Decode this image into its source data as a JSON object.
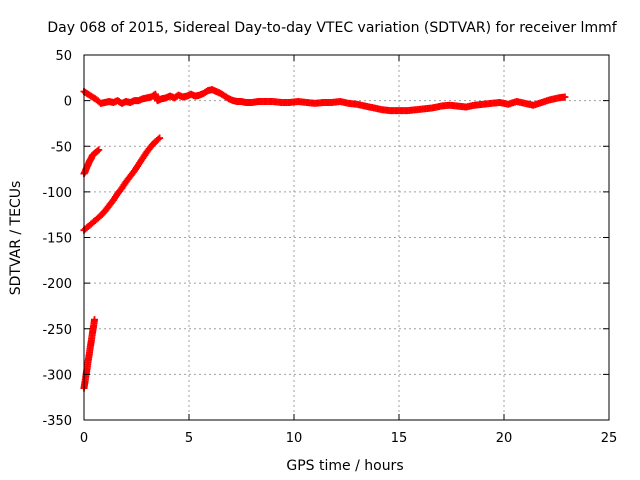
{
  "chart_data": {
    "type": "scatter",
    "title": "Day 068 of 2015, Sidereal Day-to-day VTEC variation (SDTVAR) for receiver lmmf",
    "xlabel": "GPS time / hours",
    "ylabel": "SDTVAR / TECUs",
    "xlim": [
      0,
      25
    ],
    "ylim": [
      -350,
      50
    ],
    "xticks": [
      0,
      5,
      10,
      15,
      20,
      25
    ],
    "yticks": [
      -350,
      -300,
      -250,
      -200,
      -150,
      -100,
      -50,
      0,
      50
    ],
    "xtick_labels": [
      "0",
      "5",
      "10",
      "15",
      "20",
      "25"
    ],
    "ytick_labels": [
      "-350",
      "-300",
      "-250",
      "-200",
      "-150",
      "-100",
      "-50",
      "0",
      "50"
    ],
    "grid": true,
    "legend": "none",
    "marker": "plus",
    "color": "#ff0000",
    "series": [
      {
        "x": [
          0.0,
          0.2,
          0.4,
          0.6,
          0.8,
          1.0,
          1.2,
          1.4,
          1.6,
          1.8,
          2.0,
          2.2,
          2.4,
          2.6,
          2.8,
          3.0,
          3.2,
          3.4,
          3.5,
          3.7,
          3.9,
          4.1,
          4.3,
          4.5,
          4.7,
          4.9,
          5.1,
          5.3,
          5.5,
          5.7,
          5.9,
          6.1,
          6.3,
          6.5,
          6.7,
          6.9,
          7.1,
          7.3,
          7.5,
          7.7,
          8.0,
          8.3,
          8.6,
          9.0,
          9.4,
          9.8,
          10.2,
          10.6,
          11.0,
          11.4,
          11.8,
          12.2,
          12.6,
          13.0,
          13.4,
          13.8,
          14.2,
          14.6,
          15.0,
          15.4,
          15.8,
          16.2,
          16.6,
          17.0,
          17.4,
          17.8,
          18.2,
          18.6,
          19.0,
          19.4,
          19.8,
          20.2,
          20.6,
          21.0,
          21.4,
          21.8,
          22.2,
          22.6,
          22.9
        ],
        "y": [
          10,
          7,
          4,
          1,
          -3,
          -2,
          -1,
          -2,
          0,
          -3,
          -1,
          -2,
          0,
          0,
          2,
          3,
          4,
          7,
          0,
          2,
          3,
          5,
          3,
          6,
          4,
          5,
          7,
          5,
          6,
          8,
          11,
          12,
          10,
          8,
          5,
          2,
          0,
          -1,
          -1,
          -2,
          -2,
          -1,
          -1,
          -1,
          -2,
          -2,
          -1,
          -2,
          -3,
          -2,
          -2,
          -1,
          -3,
          -4,
          -6,
          -8,
          -10,
          -11,
          -11,
          -11,
          -10,
          -9,
          -8,
          -6,
          -5,
          -6,
          -7,
          -5,
          -4,
          -3,
          -2,
          -4,
          -1,
          -3,
          -5,
          -2,
          1,
          3,
          4
        ]
      },
      {
        "x": [
          0.0,
          0.05,
          0.1,
          0.15,
          0.2,
          0.25,
          0.3,
          0.35,
          0.4,
          0.45,
          0.5,
          0.55,
          0.6,
          0.65,
          0.7
        ],
        "y": [
          -80,
          -78,
          -75,
          -72,
          -70,
          -67,
          -65,
          -63,
          -60,
          -59,
          -58,
          -57,
          -56,
          -55,
          -54
        ]
      },
      {
        "x": [
          0.0,
          0.2,
          0.4,
          0.6,
          0.8,
          1.0,
          1.2,
          1.4,
          1.6,
          1.8,
          2.0,
          2.2,
          2.4,
          2.6,
          2.8,
          3.0,
          3.2,
          3.4,
          3.6
        ],
        "y": [
          -142,
          -138,
          -134,
          -130,
          -126,
          -121,
          -115,
          -109,
          -102,
          -96,
          -89,
          -83,
          -77,
          -70,
          -63,
          -56,
          -50,
          -45,
          -41
        ]
      },
      {
        "x": [
          0.0,
          0.05,
          0.1,
          0.15,
          0.2,
          0.25,
          0.3,
          0.35,
          0.4,
          0.45,
          0.5
        ],
        "y": [
          -315,
          -308,
          -300,
          -293,
          -285,
          -278,
          -270,
          -263,
          -255,
          -248,
          -240
        ]
      }
    ]
  }
}
